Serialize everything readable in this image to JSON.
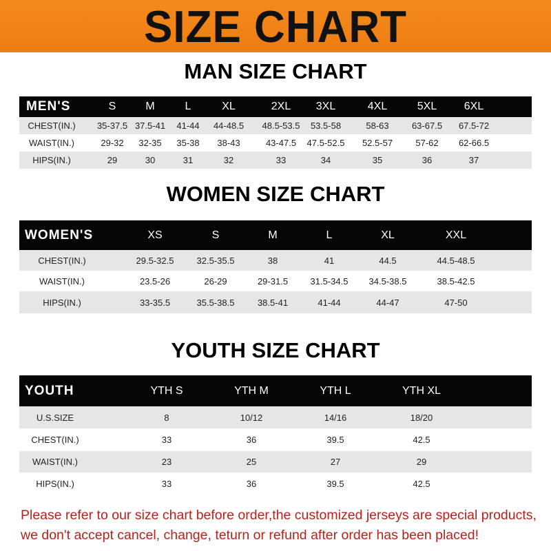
{
  "banner_title": "SIZE CHART",
  "colors": {
    "banner": "#f28a1e",
    "header_row": "#050505",
    "stripe": "#e6e6e6",
    "notice": "#b4221c"
  },
  "men": {
    "title": "MAN SIZE CHART",
    "header": [
      "MEN'S",
      "S",
      "M",
      "L",
      "XL",
      "2XL",
      "3XL",
      "4XL",
      "5XL",
      "6XL"
    ],
    "rows": [
      [
        "CHEST(IN.)",
        "35-37.5",
        "37.5-41",
        "41-44",
        "44-48.5",
        "48.5-53.5",
        "53.5-58",
        "58-63",
        "63-67.5",
        "67.5-72"
      ],
      [
        "WAIST(IN.)",
        "29-32",
        "32-35",
        "35-38",
        "38-43",
        "43-47.5",
        "47.5-52.5",
        "52.5-57",
        "57-62",
        "62-66.5"
      ],
      [
        "HIPS(IN.)",
        "29",
        "30",
        "31",
        "32",
        "33",
        "34",
        "35",
        "36",
        "37"
      ]
    ]
  },
  "women": {
    "title": "WOMEN SIZE CHART",
    "header": [
      "WOMEN'S",
      "XS",
      "S",
      "M",
      "L",
      "XL",
      "XXL"
    ],
    "rows": [
      [
        "CHEST(IN.)",
        "29.5-32.5",
        "32.5-35.5",
        "38",
        "41",
        "44.5",
        "44.5-48.5"
      ],
      [
        "WAIST(IN.)",
        "23.5-26",
        "26-29",
        "29-31.5",
        "31.5-34.5",
        "34.5-38.5",
        "38.5-42.5"
      ],
      [
        "HIPS(IN.)",
        "33-35.5",
        "35.5-38.5",
        "38.5-41",
        "41-44",
        "44-47",
        "47-50"
      ]
    ]
  },
  "youth": {
    "title": "YOUTH SIZE CHART",
    "header": [
      "YOUTH",
      "YTH S",
      "YTH M",
      "YTH L",
      "YTH XL"
    ],
    "rows": [
      [
        "U.S.SIZE",
        "8",
        "10/12",
        "14/16",
        "18/20"
      ],
      [
        "CHEST(IN.)",
        "33",
        "36",
        "39.5",
        "42.5"
      ],
      [
        "WAIST(IN.)",
        "23",
        "25",
        "27",
        "29"
      ],
      [
        "HIPS(IN.)",
        "33",
        "36",
        "39.5",
        "42.5"
      ]
    ]
  },
  "notice": {
    "line1": "Please refer to our size chart before order,the customized jerseys are special products,",
    "line2": "we don't accept cancel, change, teturn or refund after order has been placed!"
  }
}
